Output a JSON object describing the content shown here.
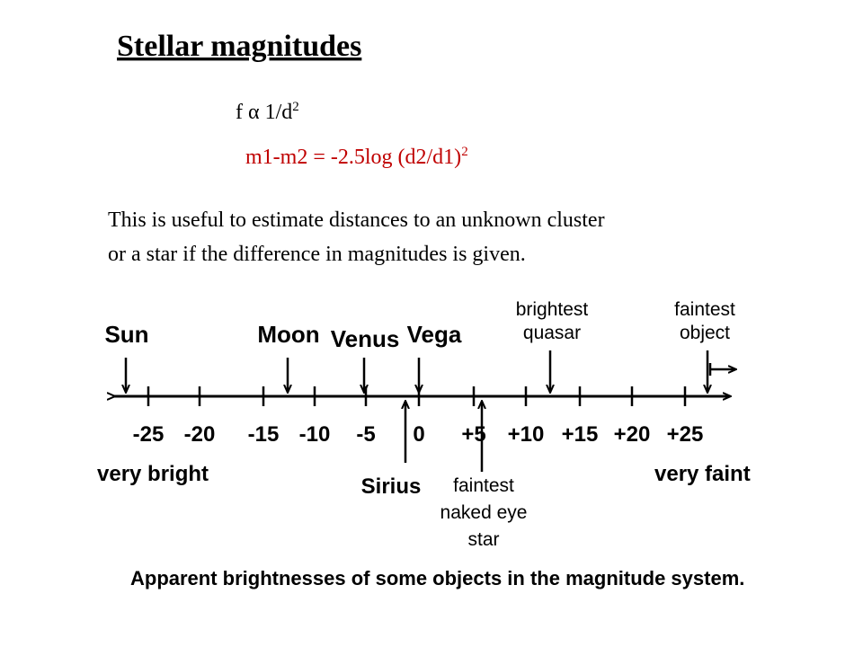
{
  "title": "Stellar magnitudes",
  "formula_1": {
    "text": "f α 1/d",
    "superscript": "2"
  },
  "formula_2": {
    "text": "m1-m2 = -2.5log (d2/d1)",
    "superscript": "2"
  },
  "paragraph": [
    "This is useful to estimate distances to an unknown cluster",
    "or a star if the difference in magnitudes is given."
  ],
  "diagram": {
    "ticks": [
      "-25",
      "-20",
      "-15",
      "-10",
      "-5",
      "0",
      "+5",
      "+10",
      "+15",
      "+20",
      "+25"
    ],
    "above": [
      [
        "Sun"
      ],
      [
        "Moon"
      ],
      [
        "Venus"
      ],
      [
        "Vega"
      ],
      [
        "brightest",
        "quasar"
      ],
      [
        "faintest",
        "object"
      ]
    ],
    "below": [
      [
        "Sirius"
      ],
      [
        "faintest",
        "naked eye",
        "star"
      ]
    ],
    "left_end": "very bright",
    "right_end": "very faint",
    "caption": "Apparent brightnesses of some objects in the magnitude system."
  }
}
